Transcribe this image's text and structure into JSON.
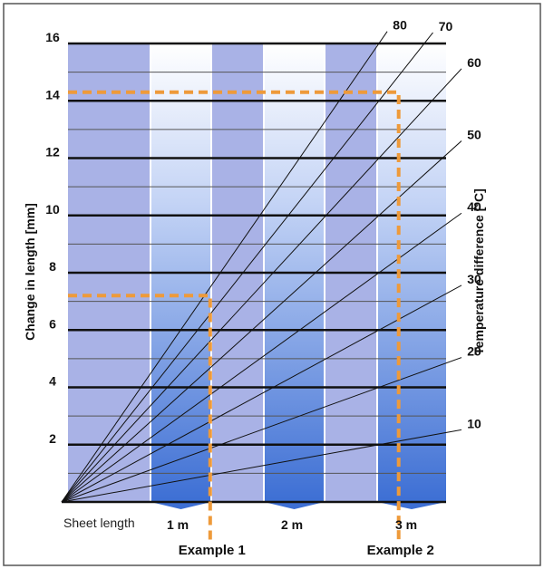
{
  "chart_data": {
    "type": "line",
    "ylabel": "Change in length [mm]",
    "y2label": "Temperature difference [°C]",
    "xlabel": "Sheet length",
    "ylim": [
      0,
      16
    ],
    "xlim": [
      0,
      3.5
    ],
    "y_ticks": [
      "2",
      "4",
      "6",
      "8",
      "10",
      "12",
      "14",
      "16"
    ],
    "y_tick_values": [
      2,
      4,
      6,
      8,
      10,
      12,
      14,
      16
    ],
    "x_ticks": [
      "1 m",
      "2 m",
      "3 m"
    ],
    "x_tick_values": [
      1,
      2,
      3
    ],
    "series": [
      {
        "name": "10",
        "x": [
          0,
          3.5
        ],
        "y": [
          0,
          2.52
        ]
      },
      {
        "name": "20",
        "x": [
          0,
          3.5
        ],
        "y": [
          0,
          5.04
        ]
      },
      {
        "name": "30",
        "x": [
          0,
          3.5
        ],
        "y": [
          0,
          7.56
        ]
      },
      {
        "name": "40",
        "x": [
          0,
          3.5
        ],
        "y": [
          0,
          10.08
        ]
      },
      {
        "name": "50",
        "x": [
          0,
          3.5
        ],
        "y": [
          0,
          12.6
        ]
      },
      {
        "name": "60",
        "x": [
          0,
          3.5
        ],
        "y": [
          0,
          15.12
        ]
      },
      {
        "name": "70",
        "x": [
          0,
          3.25
        ],
        "y": [
          0,
          16.38
        ]
      },
      {
        "name": "80",
        "x": [
          0,
          2.85
        ],
        "y": [
          0,
          16.42
        ]
      }
    ],
    "examples": [
      {
        "name": "Example 1",
        "x": 1.3,
        "y": 7.2
      },
      {
        "name": "Example 2",
        "x": 2.95,
        "y": 14.3
      }
    ],
    "colors": {
      "band_light": "#a9b2e6",
      "band_blue_top": "#ffffff",
      "band_blue_bottom": "#3d6fd4",
      "example_line": "#ee9a3a",
      "gridline": "#111111"
    }
  }
}
